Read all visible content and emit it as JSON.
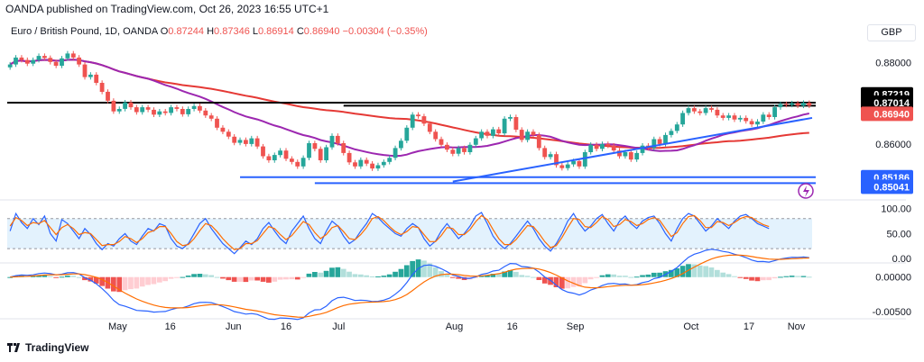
{
  "header": {
    "publisher": "OANDA published on TradingView.com, Oct 26, 2023 16:55 UTC+1"
  },
  "legend": {
    "symbol": "Euro / British Pound, 1D, OANDA",
    "o_label": "O",
    "o_value": "0.87244",
    "h_label": "H",
    "h_value": "0.87346",
    "l_label": "L",
    "l_value": "0.86914",
    "c_label": "C",
    "c_value": "0.86940",
    "change": "−0.00304 (−0.35%)"
  },
  "currency": "GBP",
  "footer": {
    "brand": "TradingView"
  },
  "colors": {
    "up": "#26a69a",
    "down": "#ef5350",
    "sma_fast": "#9c27b0",
    "sma_slow": "#e53935",
    "trend": "#2962ff",
    "level": "#000000",
    "rsi": "#2962ff",
    "stoch": "#ff6d00",
    "macd": "#2962ff",
    "signal": "#ff6d00"
  },
  "chart_data": [
    {
      "type": "candlestick",
      "ylim": [
        0.8485,
        0.8825
      ],
      "x_ticks": [
        "May",
        "16",
        "Jun",
        "16",
        "Jul",
        "Aug",
        "16",
        "Sep",
        "Oct",
        "17",
        "Nov"
      ],
      "y_ticks": [
        "0.88000",
        "0.86000"
      ],
      "price_labels": [
        "0.87219",
        "0.87014",
        "0.86940",
        "0.85186",
        "0.85041"
      ],
      "horizontal_levels": [
        0.87014,
        0.8694,
        0.85186,
        0.85041
      ],
      "trend_line": {
        "start": 0.8508,
        "end": 0.8664
      },
      "candles": [
        {
          "o": 0.8788,
          "c": 0.8795
        },
        {
          "o": 0.8795,
          "c": 0.8812
        },
        {
          "o": 0.8812,
          "c": 0.8806
        },
        {
          "o": 0.8806,
          "c": 0.8797
        },
        {
          "o": 0.8797,
          "c": 0.8806
        },
        {
          "o": 0.8806,
          "c": 0.8816
        },
        {
          "o": 0.8816,
          "c": 0.8811
        },
        {
          "o": 0.8811,
          "c": 0.8801
        },
        {
          "o": 0.8801,
          "c": 0.8792
        },
        {
          "o": 0.8792,
          "c": 0.881
        },
        {
          "o": 0.881,
          "c": 0.8822
        },
        {
          "o": 0.8822,
          "c": 0.8812
        },
        {
          "o": 0.8812,
          "c": 0.8795
        },
        {
          "o": 0.8795,
          "c": 0.8764
        },
        {
          "o": 0.8764,
          "c": 0.877
        },
        {
          "o": 0.877,
          "c": 0.875
        },
        {
          "o": 0.875,
          "c": 0.8728
        },
        {
          "o": 0.8728,
          "c": 0.8706
        },
        {
          "o": 0.8706,
          "c": 0.868
        },
        {
          "o": 0.868,
          "c": 0.8686
        },
        {
          "o": 0.8686,
          "c": 0.8702
        },
        {
          "o": 0.8702,
          "c": 0.869
        },
        {
          "o": 0.869,
          "c": 0.8678
        },
        {
          "o": 0.8678,
          "c": 0.869
        },
        {
          "o": 0.869,
          "c": 0.8684
        },
        {
          "o": 0.8684,
          "c": 0.8672
        },
        {
          "o": 0.8672,
          "c": 0.868
        },
        {
          "o": 0.868,
          "c": 0.8676
        },
        {
          "o": 0.8676,
          "c": 0.869
        },
        {
          "o": 0.869,
          "c": 0.8686
        },
        {
          "o": 0.8686,
          "c": 0.8673
        },
        {
          "o": 0.8673,
          "c": 0.8686
        },
        {
          "o": 0.8686,
          "c": 0.8693
        },
        {
          "o": 0.8693,
          "c": 0.8682
        },
        {
          "o": 0.8682,
          "c": 0.867
        },
        {
          "o": 0.867,
          "c": 0.8662
        },
        {
          "o": 0.8662,
          "c": 0.864
        },
        {
          "o": 0.864,
          "c": 0.863
        },
        {
          "o": 0.863,
          "c": 0.8618
        },
        {
          "o": 0.8618,
          "c": 0.8603
        },
        {
          "o": 0.8603,
          "c": 0.861
        },
        {
          "o": 0.861,
          "c": 0.86
        },
        {
          "o": 0.86,
          "c": 0.8614
        },
        {
          "o": 0.8614,
          "c": 0.8594
        },
        {
          "o": 0.8594,
          "c": 0.857
        },
        {
          "o": 0.857,
          "c": 0.856
        },
        {
          "o": 0.856,
          "c": 0.8573
        },
        {
          "o": 0.8573,
          "c": 0.8584
        },
        {
          "o": 0.8584,
          "c": 0.8564
        },
        {
          "o": 0.8564,
          "c": 0.8556
        },
        {
          "o": 0.8556,
          "c": 0.8545
        },
        {
          "o": 0.8545,
          "c": 0.8566
        },
        {
          "o": 0.8566,
          "c": 0.8602
        },
        {
          "o": 0.8602,
          "c": 0.8588
        },
        {
          "o": 0.8588,
          "c": 0.856
        },
        {
          "o": 0.856,
          "c": 0.8592
        },
        {
          "o": 0.8592,
          "c": 0.862
        },
        {
          "o": 0.862,
          "c": 0.8602
        },
        {
          "o": 0.8602,
          "c": 0.8578
        },
        {
          "o": 0.8578,
          "c": 0.8555
        },
        {
          "o": 0.8555,
          "c": 0.8545
        },
        {
          "o": 0.8545,
          "c": 0.8561
        },
        {
          "o": 0.8561,
          "c": 0.8552
        },
        {
          "o": 0.8552,
          "c": 0.854
        },
        {
          "o": 0.854,
          "c": 0.8548
        },
        {
          "o": 0.8548,
          "c": 0.8556
        },
        {
          "o": 0.8556,
          "c": 0.8566
        },
        {
          "o": 0.8566,
          "c": 0.859
        },
        {
          "o": 0.859,
          "c": 0.8608
        },
        {
          "o": 0.8608,
          "c": 0.864
        },
        {
          "o": 0.864,
          "c": 0.8672
        },
        {
          "o": 0.8672,
          "c": 0.8668
        },
        {
          "o": 0.8668,
          "c": 0.865
        },
        {
          "o": 0.865,
          "c": 0.863
        },
        {
          "o": 0.863,
          "c": 0.8612
        },
        {
          "o": 0.8612,
          "c": 0.8598
        },
        {
          "o": 0.8598,
          "c": 0.8586
        },
        {
          "o": 0.8586,
          "c": 0.8576
        },
        {
          "o": 0.8576,
          "c": 0.859
        },
        {
          "o": 0.859,
          "c": 0.858
        },
        {
          "o": 0.858,
          "c": 0.8598
        },
        {
          "o": 0.8598,
          "c": 0.8614
        },
        {
          "o": 0.8614,
          "c": 0.863
        },
        {
          "o": 0.863,
          "c": 0.862
        },
        {
          "o": 0.862,
          "c": 0.8636
        },
        {
          "o": 0.8636,
          "c": 0.8626
        },
        {
          "o": 0.8626,
          "c": 0.8662
        },
        {
          "o": 0.8662,
          "c": 0.8666
        },
        {
          "o": 0.8666,
          "c": 0.8635
        },
        {
          "o": 0.8635,
          "c": 0.861
        },
        {
          "o": 0.861,
          "c": 0.863
        },
        {
          "o": 0.863,
          "c": 0.8622
        },
        {
          "o": 0.8622,
          "c": 0.859
        },
        {
          "o": 0.859,
          "c": 0.8568
        },
        {
          "o": 0.8568,
          "c": 0.8575
        },
        {
          "o": 0.8575,
          "c": 0.8548
        },
        {
          "o": 0.8548,
          "c": 0.8541
        },
        {
          "o": 0.8541,
          "c": 0.855
        },
        {
          "o": 0.855,
          "c": 0.8558
        },
        {
          "o": 0.8558,
          "c": 0.8545
        },
        {
          "o": 0.8545,
          "c": 0.858
        },
        {
          "o": 0.858,
          "c": 0.8598
        },
        {
          "o": 0.8598,
          "c": 0.8588
        },
        {
          "o": 0.8588,
          "c": 0.86
        },
        {
          "o": 0.86,
          "c": 0.8596
        },
        {
          "o": 0.8596,
          "c": 0.8584
        },
        {
          "o": 0.8584,
          "c": 0.857
        },
        {
          "o": 0.857,
          "c": 0.858
        },
        {
          "o": 0.858,
          "c": 0.8562
        },
        {
          "o": 0.8562,
          "c": 0.8578
        },
        {
          "o": 0.8578,
          "c": 0.8596
        },
        {
          "o": 0.8596,
          "c": 0.859
        },
        {
          "o": 0.859,
          "c": 0.8612
        },
        {
          "o": 0.8612,
          "c": 0.86
        },
        {
          "o": 0.86,
          "c": 0.8622
        },
        {
          "o": 0.8622,
          "c": 0.8632
        },
        {
          "o": 0.8632,
          "c": 0.8648
        },
        {
          "o": 0.8648,
          "c": 0.8676
        },
        {
          "o": 0.8676,
          "c": 0.8688
        },
        {
          "o": 0.8688,
          "c": 0.868
        },
        {
          "o": 0.868,
          "c": 0.8676
        },
        {
          "o": 0.8676,
          "c": 0.8688
        },
        {
          "o": 0.8688,
          "c": 0.8684
        },
        {
          "o": 0.8684,
          "c": 0.867
        },
        {
          "o": 0.867,
          "c": 0.8664
        },
        {
          "o": 0.8664,
          "c": 0.867
        },
        {
          "o": 0.867,
          "c": 0.866
        },
        {
          "o": 0.866,
          "c": 0.8664
        },
        {
          "o": 0.8664,
          "c": 0.8656
        },
        {
          "o": 0.8656,
          "c": 0.8648
        },
        {
          "o": 0.8648,
          "c": 0.8655
        },
        {
          "o": 0.8655,
          "c": 0.8672
        },
        {
          "o": 0.8672,
          "c": 0.8666
        },
        {
          "o": 0.8666,
          "c": 0.869
        },
        {
          "o": 0.869,
          "c": 0.8698
        },
        {
          "o": 0.8698,
          "c": 0.8696
        },
        {
          "o": 0.8696,
          "c": 0.87
        },
        {
          "o": 0.87,
          "c": 0.8694
        },
        {
          "o": 0.8694,
          "c": 0.8701
        },
        {
          "o": 0.8701,
          "c": 0.8694
        }
      ]
    },
    {
      "type": "line",
      "name": "oscillator",
      "ylim": [
        -5,
        110
      ],
      "y_ticks": [
        "100.00",
        "50.00",
        "0.00"
      ],
      "band": [
        20,
        80
      ],
      "series": [
        {
          "color_key": "rsi",
          "values": [
            55,
            90,
            72,
            60,
            80,
            68,
            85,
            50,
            35,
            78,
            70,
            55,
            40,
            60,
            48,
            30,
            18,
            30,
            25,
            40,
            50,
            35,
            28,
            45,
            60,
            55,
            70,
            65,
            40,
            25,
            20,
            30,
            50,
            70,
            80,
            60,
            45,
            30,
            20,
            10,
            22,
            35,
            28,
            40,
            60,
            72,
            55,
            40,
            30,
            55,
            70,
            85,
            60,
            40,
            30,
            55,
            75,
            65,
            45,
            30,
            38,
            55,
            70,
            90,
            82,
            70,
            60,
            50,
            45,
            60,
            70,
            62,
            40,
            25,
            35,
            55,
            70,
            55,
            40,
            50,
            65,
            85,
            92,
            70,
            45,
            30,
            20,
            30,
            45,
            60,
            75,
            60,
            40,
            25,
            15,
            30,
            50,
            75,
            90,
            70,
            55,
            65,
            80,
            88,
            70,
            55,
            75,
            85,
            70,
            60,
            75,
            82,
            85,
            70,
            50,
            35,
            60,
            80,
            90,
            85,
            70,
            55,
            65,
            80,
            70,
            60,
            75,
            85,
            88,
            80,
            70,
            65,
            60
          ]
        },
        {
          "color_key": "stoch",
          "values": [
            65,
            82,
            76,
            66,
            72,
            70,
            76,
            62,
            48,
            62,
            68,
            60,
            48,
            52,
            50,
            38,
            26,
            28,
            28,
            34,
            44,
            40,
            32,
            40,
            52,
            56,
            64,
            64,
            50,
            34,
            26,
            28,
            40,
            56,
            70,
            66,
            54,
            40,
            28,
            18,
            20,
            30,
            30,
            36,
            50,
            64,
            60,
            48,
            38,
            46,
            60,
            74,
            68,
            52,
            40,
            48,
            62,
            66,
            54,
            40,
            38,
            48,
            62,
            80,
            84,
            76,
            64,
            54,
            48,
            54,
            64,
            62,
            48,
            34,
            34,
            46,
            62,
            60,
            48,
            48,
            58,
            74,
            86,
            78,
            58,
            40,
            28,
            28,
            38,
            52,
            66,
            64,
            50,
            34,
            22,
            26,
            42,
            62,
            80,
            78,
            64,
            62,
            72,
            84,
            78,
            64,
            68,
            78,
            74,
            66,
            70,
            78,
            82,
            76,
            60,
            44,
            52,
            70,
            84,
            86,
            76,
            62,
            62,
            74,
            72,
            66,
            72,
            80,
            84,
            82,
            74,
            68,
            64
          ]
        }
      ]
    },
    {
      "type": "histogram",
      "name": "macd",
      "ylim": [
        -0.0058,
        0.0018
      ],
      "y_ticks": [
        "0.00000",
        "-0.00500"
      ]
    }
  ]
}
